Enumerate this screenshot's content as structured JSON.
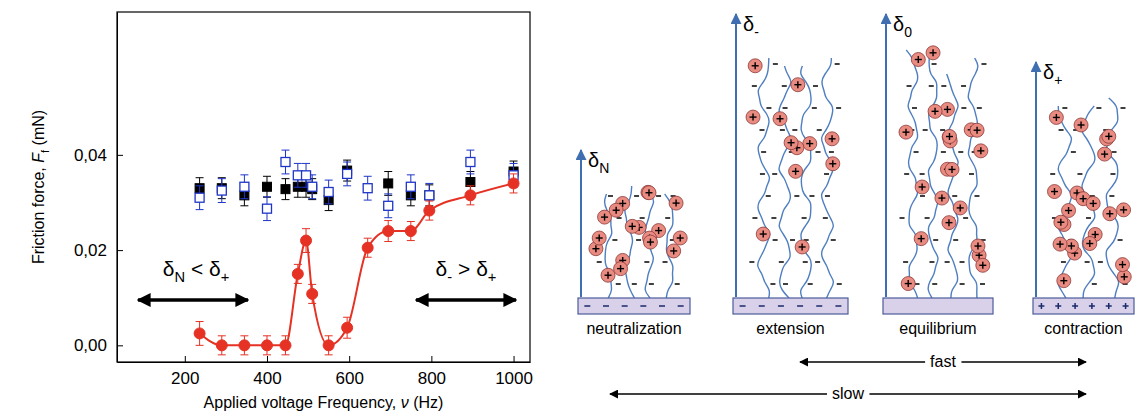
{
  "chart_data": {
    "type": "scatter",
    "x_label": "Applied voltage Frequency, ν (Hz)",
    "y_label": "Friction force, Ff (mN)",
    "xlim": [
      35,
      1040
    ],
    "xticks": [
      200,
      400,
      600,
      800,
      1000
    ],
    "ylim": [
      -0.0035,
      0.07
    ],
    "yticks": [
      {
        "value": 0,
        "label": "0,00"
      },
      {
        "value": 0.02,
        "label": "0,02"
      },
      {
        "value": 0.04,
        "label": "0,04"
      }
    ],
    "grid": false,
    "series": [
      {
        "type": "scatter",
        "color": "#000000",
        "marker": "square",
        "x": [
          236,
          290,
          345,
          400,
          445,
          475,
          495,
          510,
          550,
          595,
          695,
          750,
          795,
          895,
          1000
        ],
        "values": [
          0.033,
          0.033,
          0.0315,
          0.0333,
          0.0328,
          0.0333,
          0.0333,
          0.0328,
          0.0305,
          0.0367,
          0.034,
          0.0315,
          0.0315,
          0.0343,
          0.0365
        ],
        "errors": [
          0.0022,
          0.0022,
          0.0022,
          0.0022,
          0.0022,
          0.0022,
          0.0022,
          0.0022,
          0.0022,
          0.0022,
          0.0025,
          0.0022,
          0.0022,
          0.0022,
          0.0022
        ]
      },
      {
        "type": "scatter",
        "color": "#1f35c8",
        "marker": "square-open",
        "x": [
          236,
          290,
          345,
          400,
          445,
          475,
          495,
          510,
          550,
          595,
          645,
          695,
          750,
          795,
          895,
          1000
        ],
        "values": [
          0.031,
          0.0325,
          0.0333,
          0.0287,
          0.0385,
          0.0357,
          0.0357,
          0.0333,
          0.0322,
          0.036,
          0.033,
          0.0293,
          0.0333,
          0.0315,
          0.0385,
          0.0357
        ],
        "errors": [
          0.0025,
          0.0025,
          0.0025,
          0.0025,
          0.0025,
          0.0025,
          0.0025,
          0.0025,
          0.0025,
          0.0025,
          0.0025,
          0.0025,
          0.0025,
          0.0025,
          0.0025,
          0.0025
        ]
      },
      {
        "type": "line",
        "color": "#e53224",
        "marker": "circle",
        "line_style": "solid",
        "x": [
          236,
          290,
          345,
          400,
          445,
          475,
          495,
          510,
          550,
          595,
          645,
          695,
          750,
          795,
          895,
          1000
        ],
        "values": [
          0.0025,
          0,
          0,
          0,
          0,
          0.015,
          0.022,
          0.0108,
          0,
          0.0037,
          0.0205,
          0.024,
          0.024,
          0.0283,
          0.0315,
          0.034
        ],
        "errors": [
          0.0025,
          0.002,
          0.002,
          0.002,
          0.002,
          0.002,
          0.0025,
          0.002,
          0.002,
          0.0022,
          0.002,
          0.0022,
          0.002,
          0.002,
          0.002,
          0.002
        ]
      }
    ],
    "annotations": [
      {
        "text": "δN < δ+"
      },
      {
        "text": "δ- > δ+"
      }
    ]
  },
  "diagram": {
    "panels": [
      {
        "height_label": "δN",
        "caption": "neutralization"
      },
      {
        "height_label": "δ-",
        "caption": "extension"
      },
      {
        "height_label": "δ0",
        "caption": "equilibrium"
      },
      {
        "height_label": "δ+",
        "caption": "contraction"
      }
    ],
    "rates": [
      {
        "label": "fast"
      },
      {
        "label": "slow"
      }
    ]
  }
}
